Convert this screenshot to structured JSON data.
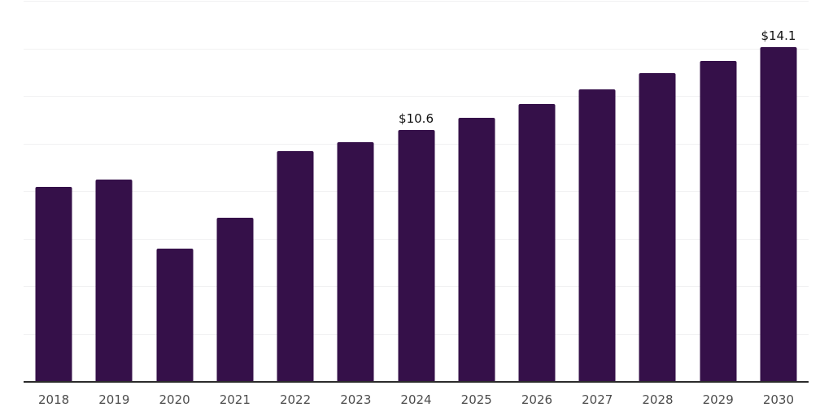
{
  "chart_data": {
    "type": "bar",
    "title": "",
    "xlabel": "",
    "ylabel": "",
    "categories": [
      "2018",
      "2019",
      "2020",
      "2021",
      "2022",
      "2023",
      "2024",
      "2025",
      "2026",
      "2027",
      "2028",
      "2029",
      "2030"
    ],
    "values": [
      8.2,
      8.5,
      5.6,
      6.9,
      9.7,
      10.1,
      10.6,
      11.1,
      11.7,
      12.3,
      13.0,
      13.5,
      14.1
    ],
    "data_labels": {
      "2024": "$10.6",
      "2030": "$14.1"
    },
    "currency_prefix": "$",
    "ylim": [
      0,
      16
    ],
    "gridline_values": [
      2,
      4,
      6,
      8,
      10,
      12,
      14,
      16
    ],
    "grid_on": true,
    "legend_position": "none",
    "colors": {
      "bar": "#351049",
      "grid": "#f1f1f2",
      "axis_line": "#2b2b2b",
      "tick_label": "#4d4d4d",
      "data_label": "#111111",
      "background": "#ffffff"
    }
  }
}
